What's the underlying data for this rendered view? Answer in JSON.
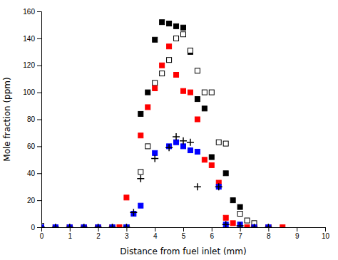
{
  "chart_data": {
    "type": "scatter",
    "xlabel": "Distance from fuel inlet (mm)",
    "ylabel": "Mole fraction (ppm)",
    "xlim": [
      0,
      10
    ],
    "ylim": [
      0,
      160
    ],
    "xticks": [
      0,
      1,
      2,
      3,
      4,
      5,
      6,
      7,
      8,
      9,
      10
    ],
    "yticks": [
      0,
      20,
      40,
      60,
      80,
      100,
      120,
      140,
      160
    ],
    "grid": false,
    "series": [
      {
        "color": "black",
        "marker": "square",
        "x": [
          0.0,
          0.5,
          1.0,
          1.5,
          2.0,
          2.5,
          3.0,
          3.5,
          3.75,
          4.0,
          4.25,
          4.5,
          4.75,
          5.0,
          5.25,
          5.5,
          5.75,
          6.0,
          6.5,
          6.75,
          7.0,
          7.5,
          8.0
        ],
        "values": [
          0,
          0,
          0,
          0,
          0,
          0,
          0,
          84,
          100,
          139,
          152,
          151,
          149,
          148,
          130,
          95,
          88,
          52,
          40,
          20,
          15,
          0,
          0
        ]
      },
      {
        "color": "black",
        "marker": "open-square",
        "x": [
          0.0,
          0.5,
          1.0,
          2.0,
          3.0,
          3.5,
          3.75,
          4.0,
          4.25,
          4.5,
          4.75,
          5.0,
          5.25,
          5.5,
          5.75,
          6.0,
          6.25,
          6.5,
          7.0,
          7.25,
          7.5,
          8.0
        ],
        "values": [
          1,
          0,
          0,
          0,
          0,
          41,
          60,
          107,
          114,
          124,
          140,
          143,
          131,
          116,
          100,
          100,
          63,
          62,
          10,
          5,
          3,
          0
        ]
      },
      {
        "color": "red",
        "marker": "square",
        "x": [
          0.0,
          0.5,
          1.0,
          1.5,
          2.0,
          2.5,
          2.75,
          3.0,
          3.5,
          3.75,
          4.0,
          4.25,
          4.5,
          4.75,
          5.0,
          5.25,
          5.5,
          5.75,
          6.0,
          6.25,
          6.5,
          6.75,
          7.25,
          7.5,
          8.0,
          8.5
        ],
        "values": [
          0,
          0,
          0,
          0,
          0,
          0,
          0,
          22,
          68,
          89,
          103,
          120,
          134,
          113,
          101,
          100,
          80,
          50,
          46,
          33,
          7,
          3,
          0,
          0,
          0,
          0
        ]
      },
      {
        "color": "blue",
        "marker": "square",
        "x": [
          0.0,
          0.5,
          1.0,
          1.5,
          2.0,
          2.5,
          3.0,
          3.25,
          3.5,
          4.0,
          4.5,
          4.75,
          5.0,
          5.25,
          5.5,
          6.25,
          6.5,
          7.0,
          7.5,
          8.0
        ],
        "values": [
          0,
          0,
          0,
          0,
          0,
          0,
          0,
          10,
          16,
          55,
          60,
          63,
          60,
          57,
          56,
          30,
          2,
          2,
          0,
          0
        ]
      },
      {
        "color": "black",
        "marker": "plus",
        "x": [
          0.0,
          0.5,
          1.0,
          1.5,
          2.0,
          2.5,
          3.0,
          3.25,
          3.5,
          4.0,
          4.5,
          4.75,
          5.0,
          5.25,
          5.5,
          6.25,
          6.5,
          7.0,
          7.5,
          8.0
        ],
        "values": [
          0,
          0,
          0,
          0,
          0,
          0,
          0,
          11,
          36,
          51,
          59,
          67,
          64,
          63,
          30,
          30,
          2,
          1,
          0,
          0
        ]
      }
    ]
  }
}
